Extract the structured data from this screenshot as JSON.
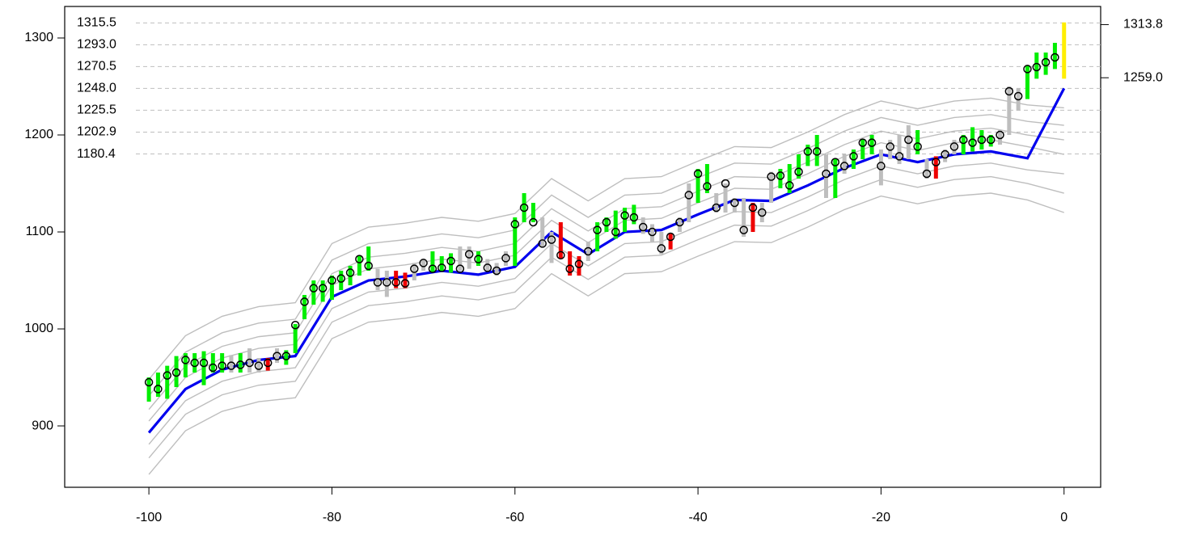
{
  "chart_data": {
    "type": "hilo",
    "xlim": [
      -109.2,
      4.0
    ],
    "ylim": [
      836.7,
      1332.5
    ],
    "xticks": [
      -100,
      -80,
      -60,
      -40,
      -20,
      0
    ],
    "yticks": [
      900,
      1000,
      1100,
      1200,
      1300
    ],
    "y2lim": [
      836.7,
      1332.5
    ],
    "y2ticks": [
      1313.8,
      {
        "value": 1259,
        "label": "1259.0"
      }
    ],
    "levels": [
      1315.5,
      {
        "value": 1293,
        "label": "1293.0"
      },
      1270.5,
      {
        "value": 1248,
        "label": "1248.0"
      },
      1225.5,
      1202.9,
      1180.4
    ],
    "bars": {
      "x": [
        -100,
        -99,
        -98,
        -97,
        -96,
        -95,
        -94,
        -93,
        -92,
        -91,
        -90,
        -89,
        -88,
        -87,
        -86,
        -85,
        -84,
        -83,
        -82,
        -81,
        -80,
        -79,
        -78,
        -77,
        -76,
        -75,
        -74,
        -73,
        -72,
        -71,
        -70,
        -69,
        -68,
        -67,
        -66,
        -65,
        -64,
        -63,
        -62,
        -61,
        -60,
        -59,
        -58,
        -57,
        -56,
        -55,
        -54,
        -53,
        -52,
        -51,
        -50,
        -49,
        -48,
        -47,
        -46,
        -45,
        -44,
        -43,
        -42,
        -41,
        -40,
        -39,
        -38,
        -37,
        -36,
        -35,
        -34,
        -33,
        -32,
        -31,
        -30,
        -29,
        -28,
        -27,
        -26,
        -25,
        -24,
        -23,
        -22,
        -21,
        -20,
        -19,
        -18,
        -17,
        -16,
        -15,
        -14,
        -13,
        -12,
        -11,
        -10,
        -9,
        -8,
        -7,
        -6,
        -5,
        -4,
        -3,
        -2,
        -1
      ],
      "low": [
        925,
        930,
        928,
        940,
        950,
        955,
        942,
        955,
        955,
        955,
        955,
        955,
        955,
        957,
        965,
        963,
        975,
        1010,
        1025,
        1028,
        1030,
        1040,
        1045,
        1055,
        1060,
        1040,
        1033,
        1042,
        1042,
        1050,
        1060,
        1058,
        1060,
        1058,
        1060,
        1062,
        1065,
        1060,
        1055,
        1065,
        1065,
        1110,
        1110,
        1085,
        1068,
        1072,
        1055,
        1055,
        1070,
        1080,
        1100,
        1093,
        1100,
        1108,
        1098,
        1090,
        1077,
        1082,
        1100,
        1110,
        1130,
        1140,
        1120,
        1120,
        1120,
        1095,
        1100,
        1110,
        1130,
        1145,
        1140,
        1155,
        1168,
        1168,
        1135,
        1135,
        1160,
        1165,
        1175,
        1180,
        1148,
        1175,
        1170,
        1175,
        1180,
        1155,
        1155,
        1172,
        1180,
        1180,
        1183,
        1185,
        1188,
        1190,
        1200,
        1225,
        1237,
        1258,
        1262,
        1268
      ],
      "high": [
        950,
        955,
        962,
        972,
        975,
        975,
        977,
        975,
        975,
        973,
        975,
        980,
        970,
        970,
        980,
        978,
        1005,
        1035,
        1050,
        1050,
        1055,
        1060,
        1065,
        1075,
        1085,
        1062,
        1060,
        1060,
        1058,
        1068,
        1072,
        1080,
        1075,
        1078,
        1085,
        1085,
        1080,
        1072,
        1068,
        1080,
        1115,
        1140,
        1130,
        1115,
        1100,
        1110,
        1080,
        1075,
        1090,
        1110,
        1115,
        1122,
        1125,
        1128,
        1115,
        1108,
        1100,
        1098,
        1115,
        1150,
        1165,
        1170,
        1140,
        1150,
        1135,
        1135,
        1130,
        1130,
        1162,
        1165,
        1170,
        1180,
        1190,
        1200,
        1180,
        1175,
        1180,
        1185,
        1195,
        1200,
        1185,
        1195,
        1200,
        1210,
        1205,
        1175,
        1178,
        1185,
        1195,
        1200,
        1208,
        1205,
        1200,
        1205,
        1250,
        1248,
        1272,
        1285,
        1285,
        1295
      ],
      "close": [
        945,
        938,
        952,
        955,
        968,
        965,
        965,
        960,
        962,
        962,
        963,
        965,
        962,
        965,
        972,
        972,
        1004,
        1028,
        1042,
        1042,
        1050,
        1052,
        1058,
        1072,
        1065,
        1048,
        1048,
        1048,
        1047,
        1062,
        1068,
        1062,
        1063,
        1070,
        1062,
        1077,
        1072,
        1063,
        1060,
        1073,
        1108,
        1125,
        1110,
        1088,
        1092,
        1076,
        1062,
        1067,
        1080,
        1102,
        1110,
        1100,
        1117,
        1115,
        1105,
        1100,
        1083,
        1095,
        1110,
        1138,
        1160,
        1147,
        1125,
        1150,
        1130,
        1102,
        1125,
        1120,
        1157,
        1158,
        1148,
        1162,
        1183,
        1183,
        1160,
        1172,
        1168,
        1178,
        1192,
        1192,
        1168,
        1188,
        1178,
        1195,
        1188,
        1160,
        1172,
        1180,
        1188,
        1195,
        1192,
        1195,
        1195,
        1200,
        1245,
        1240,
        1268,
        1270,
        1275,
        1280
      ],
      "colors": [
        "#00ee00",
        "#00ee00",
        "#00ee00",
        "#00ee00",
        "#00ee00",
        "#00ee00",
        "#00ee00",
        "#00ee00",
        "#00ee00",
        "#bebebe",
        "#00ee00",
        "#bebebe",
        "#bebebe",
        "#ee0000",
        "#bebebe",
        "#00ee00",
        "#00ee00",
        "#00ee00",
        "#00ee00",
        "#00ee00",
        "#00ee00",
        "#00ee00",
        "#00ee00",
        "#00ee00",
        "#00ee00",
        "#bebebe",
        "#bebebe",
        "#ee0000",
        "#ee0000",
        "#bebebe",
        "#bebebe",
        "#00ee00",
        "#00ee00",
        "#00ee00",
        "#bebebe",
        "#bebebe",
        "#00ee00",
        "#bebebe",
        "#bebebe",
        "#bebebe",
        "#00ee00",
        "#00ee00",
        "#00ee00",
        "#bebebe",
        "#bebebe",
        "#ee0000",
        "#ee0000",
        "#ee0000",
        "#bebebe",
        "#00ee00",
        "#00ee00",
        "#00ee00",
        "#00ee00",
        "#00ee00",
        "#bebebe",
        "#bebebe",
        "#bebebe",
        "#ee0000",
        "#bebebe",
        "#bebebe",
        "#00ee00",
        "#00ee00",
        "#bebebe",
        "#bebebe",
        "#bebebe",
        "#bebebe",
        "#ee0000",
        "#bebebe",
        "#bebebe",
        "#00ee00",
        "#00ee00",
        "#00ee00",
        "#00ee00",
        "#00ee00",
        "#bebebe",
        "#00ee00",
        "#bebebe",
        "#00ee00",
        "#00ee00",
        "#00ee00",
        "#bebebe",
        "#bebebe",
        "#bebebe",
        "#bebebe",
        "#00ee00",
        "#bebebe",
        "#ee0000",
        "#bebebe",
        "#bebebe",
        "#00ee00",
        "#00ee00",
        "#00ee00",
        "#00ee00",
        "#bebebe",
        "#bebebe",
        "#bebebe",
        "#00ee00",
        "#00ee00",
        "#00ee00",
        "#00ee00"
      ]
    },
    "last_bar": {
      "x": 0,
      "low": 1258,
      "high": 1316,
      "color": "#ffee00"
    },
    "line_x": [
      -100,
      -96,
      -92,
      -88,
      -84,
      -80,
      -76,
      -72,
      -68,
      -64,
      -60,
      -56,
      -52,
      -48,
      -44,
      -40,
      -36,
      -32,
      -28,
      -24,
      -20,
      -16,
      -12,
      -8,
      -4,
      0
    ],
    "lines": [
      {
        "color": "#bebebe",
        "values": [
          948,
          993,
          1013,
          1023,
          1027,
          1088,
          1105,
          1109,
          1115,
          1111,
          1119,
          1155,
          1132,
          1155,
          1157,
          1173,
          1188,
          1187,
          1203,
          1221,
          1235,
          1227,
          1235,
          1238,
          1231,
          1228
        ]
      },
      {
        "color": "#bebebe",
        "values": [
          931,
          976,
          996,
          1006,
          1010,
          1071,
          1088,
          1092,
          1098,
          1094,
          1102,
          1138,
          1115,
          1138,
          1140,
          1156,
          1171,
          1170,
          1186,
          1204,
          1218,
          1210,
          1218,
          1221,
          1214,
          1210
        ]
      },
      {
        "color": "#bebebe",
        "values": [
          917,
          962,
          982,
          992,
          996,
          1057,
          1074,
          1078,
          1084,
          1080,
          1088,
          1124,
          1101,
          1124,
          1126,
          1142,
          1157,
          1156,
          1172,
          1190,
          1204,
          1196,
          1204,
          1207,
          1200,
          1195
        ]
      },
      {
        "color": "#bebebe",
        "values": [
          905,
          950,
          970,
          980,
          984,
          1045,
          1062,
          1066,
          1072,
          1068,
          1076,
          1112,
          1089,
          1112,
          1114,
          1130,
          1145,
          1144,
          1160,
          1178,
          1192,
          1184,
          1192,
          1195,
          1188,
          1180
        ]
      },
      {
        "color": "#bebebe",
        "values": [
          881,
          926,
          946,
          956,
          960,
          1021,
          1038,
          1042,
          1048,
          1044,
          1052,
          1088,
          1065,
          1088,
          1090,
          1106,
          1121,
          1120,
          1136,
          1154,
          1168,
          1160,
          1168,
          1171,
          1164,
          1160
        ]
      },
      {
        "color": "#bebebe",
        "values": [
          867,
          912,
          932,
          942,
          946,
          1007,
          1024,
          1028,
          1034,
          1030,
          1038,
          1074,
          1051,
          1074,
          1076,
          1092,
          1107,
          1106,
          1122,
          1140,
          1154,
          1146,
          1154,
          1157,
          1150,
          1140
        ]
      },
      {
        "color": "#bebebe",
        "values": [
          850,
          895,
          915,
          925,
          929,
          990,
          1007,
          1011,
          1017,
          1013,
          1021,
          1057,
          1034,
          1057,
          1059,
          1075,
          1090,
          1089,
          1105,
          1123,
          1137,
          1129,
          1137,
          1140,
          1133,
          1120
        ]
      },
      {
        "color": "#0000ee",
        "values": [
          893,
          938,
          958,
          968,
          972,
          1033,
          1050,
          1054,
          1060,
          1056,
          1064,
          1100,
          1077,
          1100,
          1102,
          1118,
          1133,
          1132,
          1148,
          1166,
          1180,
          1172,
          1180,
          1183,
          1176,
          1248
        ]
      }
    ]
  }
}
